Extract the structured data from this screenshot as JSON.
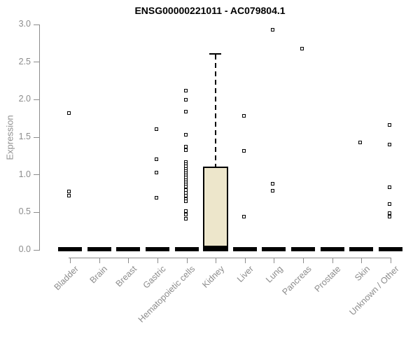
{
  "title": "ENSG00000221011 - AC079804.1",
  "chart_data": {
    "type": "boxplot",
    "title": "ENSG00000221011 - AC079804.1",
    "ylabel": "Expression",
    "ylim": [
      0.0,
      3.0
    ],
    "yticks": [
      "0.0",
      "0.5",
      "1.0",
      "1.5",
      "2.0",
      "2.5",
      "3.0"
    ],
    "grid": false,
    "legend": "none",
    "categories": [
      "Bladder",
      "Brain",
      "Breast",
      "Gastric",
      "Hematopoietic cells",
      "Kidney",
      "Liver",
      "Lung",
      "Pancreas",
      "Prostate",
      "Skin",
      "Unknown / Other"
    ],
    "zero_bar_value": 0.0,
    "points": [
      [
        1.82,
        0.78,
        0.72
      ],
      [],
      [],
      [
        1.61,
        1.21,
        1.03,
        0.69
      ],
      [
        2.12,
        2.0,
        1.84,
        1.53,
        1.37,
        1.33,
        1.17,
        1.14,
        1.11,
        1.08,
        1.05,
        1.02,
        0.99,
        0.96,
        0.93,
        0.9,
        0.87,
        0.84,
        0.8,
        0.76,
        0.72,
        0.68,
        0.65,
        0.52,
        0.47,
        0.41
      ],
      [],
      [
        1.78,
        1.32,
        0.44
      ],
      [
        2.93,
        0.88,
        0.79
      ],
      [
        2.68
      ],
      [],
      [
        1.43
      ],
      [
        1.66,
        1.4,
        0.83,
        0.61,
        0.49,
        0.44
      ]
    ],
    "box": {
      "category": "Kidney",
      "q1": 0.03,
      "median": 0.02,
      "q3": 1.11,
      "whisker_high": 2.62,
      "fill": "#EDE6CB",
      "border": "#000000"
    },
    "colors": {
      "axis": "#8c8c8c",
      "tick_text": "#8c8c8c",
      "title_text": "#000000",
      "point": "#000000",
      "zero_bar": "#000000",
      "whisker": "#000000"
    }
  }
}
